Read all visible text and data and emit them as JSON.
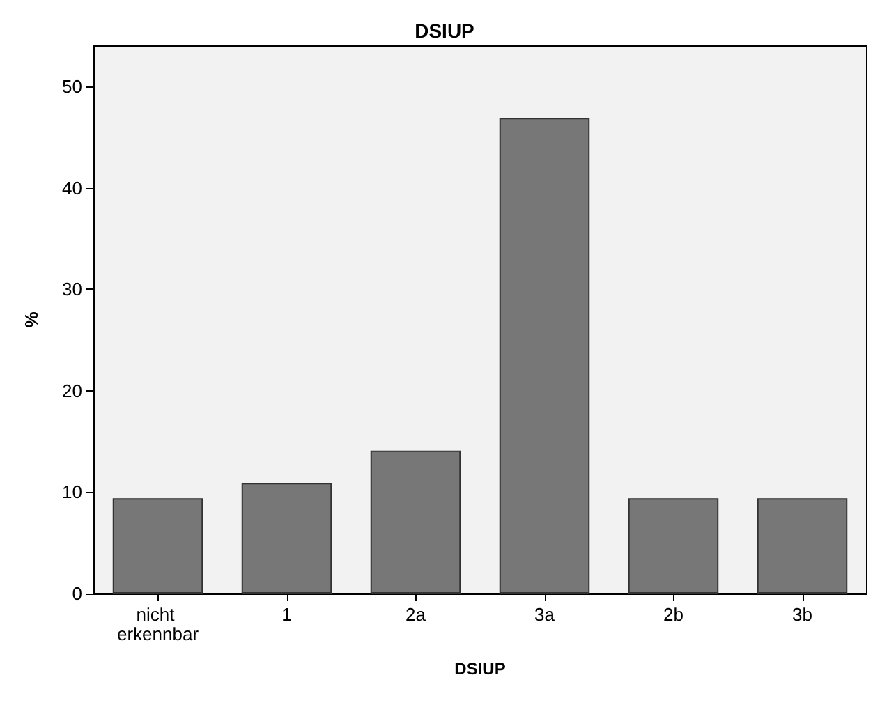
{
  "chart_data": {
    "type": "bar",
    "title": "DSIUP",
    "xlabel": "DSIUP",
    "ylabel": "%",
    "categories": [
      "nicht erkennbar",
      "1",
      "2a",
      "3a",
      "2b",
      "3b"
    ],
    "values": [
      9.4,
      10.9,
      14.1,
      46.9,
      9.4,
      9.4
    ],
    "color": "#777777",
    "ylim": [
      0,
      54
    ],
    "yticks": [
      0,
      10,
      20,
      30,
      40,
      50
    ],
    "grid": false
  }
}
